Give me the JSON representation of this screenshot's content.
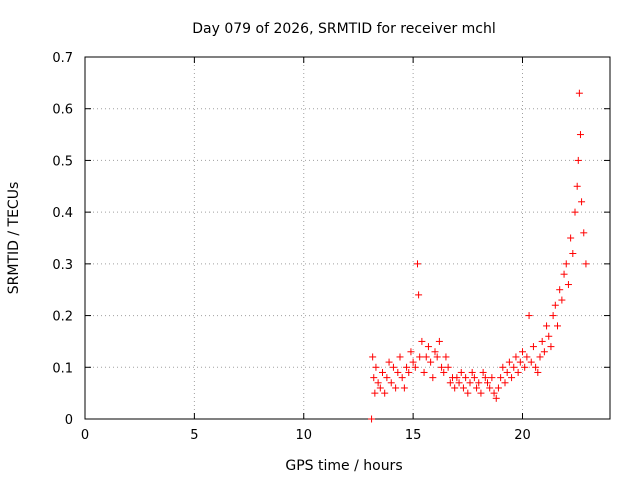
{
  "chart_data": {
    "type": "scatter",
    "title": "Day 079 of 2026, SRMTID for receiver mchl",
    "xlabel": "GPS time / hours",
    "ylabel": "SRMTID / TECUs",
    "xlim": [
      0,
      24
    ],
    "ylim": [
      0,
      0.7
    ],
    "xticks": [
      0,
      5,
      10,
      15,
      20
    ],
    "yticks": [
      0,
      0.1,
      0.2,
      0.3,
      0.4,
      0.5,
      0.6,
      0.7
    ],
    "xtick_labels": [
      "0",
      "5",
      "10",
      "15",
      "20"
    ],
    "ytick_labels": [
      "0",
      "0.1",
      "0.2",
      "0.3",
      "0.4",
      "0.5",
      "0.6",
      "0.7"
    ],
    "grid": true,
    "marker": "+",
    "color": "#ff0000",
    "series": [
      {
        "name": "SRMTID",
        "x": [
          13.1,
          13.15,
          13.2,
          13.25,
          13.3,
          13.4,
          13.5,
          13.6,
          13.7,
          13.8,
          13.9,
          14.0,
          14.1,
          14.2,
          14.3,
          14.4,
          14.5,
          14.6,
          14.7,
          14.8,
          14.9,
          15.0,
          15.1,
          15.2,
          15.25,
          15.3,
          15.4,
          15.5,
          15.6,
          15.7,
          15.8,
          15.9,
          16.0,
          16.1,
          16.2,
          16.3,
          16.4,
          16.5,
          16.6,
          16.7,
          16.8,
          16.9,
          17.0,
          17.1,
          17.2,
          17.3,
          17.4,
          17.5,
          17.6,
          17.7,
          17.8,
          17.9,
          18.0,
          18.1,
          18.2,
          18.3,
          18.4,
          18.5,
          18.6,
          18.7,
          18.8,
          18.9,
          19.0,
          19.1,
          19.2,
          19.3,
          19.4,
          19.5,
          19.6,
          19.7,
          19.8,
          19.9,
          20.0,
          20.1,
          20.2,
          20.3,
          20.4,
          20.5,
          20.6,
          20.7,
          20.8,
          20.9,
          21.0,
          21.1,
          21.2,
          21.3,
          21.4,
          21.5,
          21.6,
          21.7,
          21.8,
          21.9,
          22.0,
          22.1,
          22.2,
          22.3,
          22.4,
          22.5,
          22.55,
          22.6,
          22.65,
          22.7,
          22.8,
          22.9
        ],
        "y": [
          0.0,
          0.12,
          0.08,
          0.05,
          0.1,
          0.07,
          0.06,
          0.09,
          0.05,
          0.08,
          0.11,
          0.07,
          0.1,
          0.06,
          0.09,
          0.12,
          0.08,
          0.06,
          0.1,
          0.09,
          0.13,
          0.11,
          0.1,
          0.3,
          0.24,
          0.12,
          0.15,
          0.09,
          0.12,
          0.14,
          0.11,
          0.08,
          0.13,
          0.12,
          0.15,
          0.1,
          0.09,
          0.12,
          0.1,
          0.07,
          0.08,
          0.06,
          0.08,
          0.07,
          0.09,
          0.06,
          0.08,
          0.05,
          0.07,
          0.09,
          0.08,
          0.06,
          0.07,
          0.05,
          0.09,
          0.08,
          0.07,
          0.06,
          0.08,
          0.05,
          0.04,
          0.06,
          0.08,
          0.1,
          0.07,
          0.09,
          0.11,
          0.08,
          0.1,
          0.12,
          0.09,
          0.11,
          0.13,
          0.1,
          0.12,
          0.2,
          0.11,
          0.14,
          0.1,
          0.09,
          0.12,
          0.15,
          0.13,
          0.18,
          0.16,
          0.14,
          0.2,
          0.22,
          0.18,
          0.25,
          0.23,
          0.28,
          0.3,
          0.26,
          0.35,
          0.32,
          0.4,
          0.45,
          0.5,
          0.63,
          0.55,
          0.42,
          0.36,
          0.3
        ]
      }
    ]
  }
}
